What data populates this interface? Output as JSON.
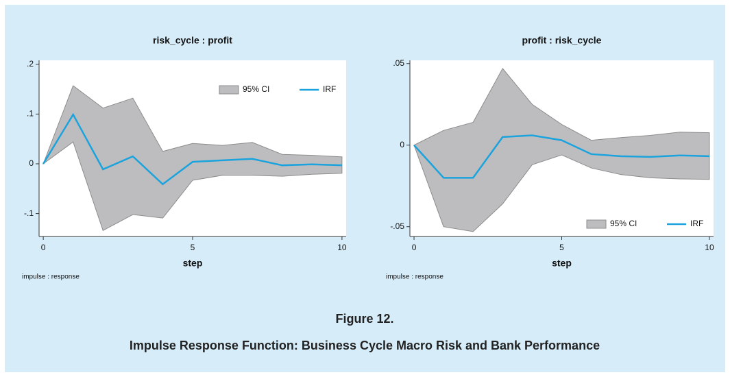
{
  "chart_data": [
    {
      "type": "line",
      "title": "risk_cycle : profit",
      "x_label": "step",
      "note": "impulse : response",
      "x": [
        0,
        1,
        2,
        3,
        4,
        5,
        6,
        7,
        8,
        9,
        10
      ],
      "xlim": [
        -0.14,
        10.14
      ],
      "xticks": [
        0,
        5,
        10
      ],
      "ylim": [
        -0.146,
        0.208
      ],
      "yticks": [
        {
          "value": -0.1,
          "label": "-.1"
        },
        0,
        {
          "value": 0.1,
          "label": ".1"
        },
        {
          "value": 0.2,
          "label": ".2"
        }
      ],
      "legend": "upper right",
      "series": [
        {
          "name": "95% CI",
          "color": "#bdbdc0",
          "upper": [
            0,
            0.157,
            0.112,
            0.132,
            0.025,
            0.041,
            0.037,
            0.043,
            0.019,
            0.017,
            0.014
          ],
          "lower": [
            0,
            0.044,
            -0.134,
            -0.102,
            -0.109,
            -0.033,
            -0.023,
            -0.023,
            -0.025,
            -0.021,
            -0.019
          ]
        },
        {
          "name": "IRF",
          "color": "#1aa3dc",
          "values": [
            0,
            0.099,
            -0.011,
            0.015,
            -0.041,
            0.004,
            0.007,
            0.01,
            -0.003,
            -0.001,
            -0.003
          ]
        }
      ]
    },
    {
      "type": "line",
      "title": "profit : risk_cycle",
      "x_label": "step",
      "note": "impulse : response",
      "x": [
        0,
        1,
        2,
        3,
        4,
        5,
        6,
        7,
        8,
        9,
        10
      ],
      "xlim": [
        -0.14,
        10.14
      ],
      "xticks": [
        0,
        5,
        10
      ],
      "ylim": [
        -0.056,
        0.052
      ],
      "yticks": [
        {
          "value": -0.05,
          "label": "-.05"
        },
        0,
        {
          "value": 0.05,
          "label": ".05"
        }
      ],
      "legend": "lower right",
      "series": [
        {
          "name": "95% CI",
          "color": "#bdbdc0",
          "upper": [
            0,
            0.009,
            0.014,
            0.047,
            0.025,
            0.0127,
            0.003,
            0.0046,
            0.006,
            0.008,
            0.0076
          ],
          "lower": [
            0,
            -0.05,
            -0.053,
            -0.036,
            -0.012,
            -0.006,
            -0.014,
            -0.018,
            -0.02,
            -0.0207,
            -0.021
          ]
        },
        {
          "name": "IRF",
          "color": "#1aa3dc",
          "values": [
            0,
            -0.02,
            -0.02,
            0.005,
            0.006,
            0.003,
            -0.0055,
            -0.0068,
            -0.0072,
            -0.0063,
            -0.0068
          ]
        }
      ]
    }
  ],
  "caption": {
    "label": "Figure 12.",
    "title": "Impulse Response Function: Business Cycle Macro Risk and Bank Performance"
  }
}
